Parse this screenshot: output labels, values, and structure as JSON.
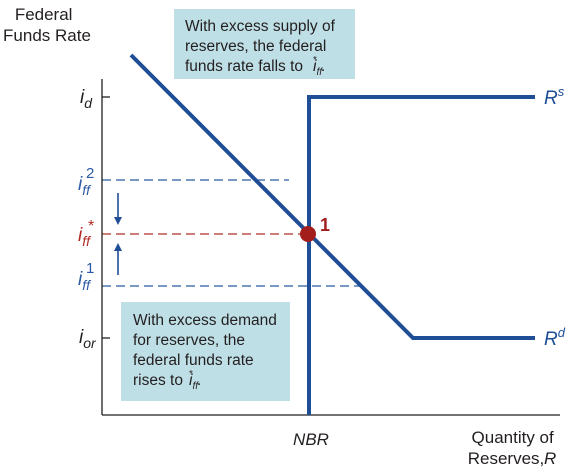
{
  "colors": {
    "curve": "#1f4e96",
    "axis": "#231f20",
    "callout_bg": "#bfdfe6",
    "dashed_blue": "#2a5aa0",
    "dashed_red": "#b03028",
    "equilibrium_point": "#a31d1d",
    "label_blue": "#2b5aa6",
    "label_red": "#b22a22"
  },
  "axes": {
    "y_label_line1": "Federal",
    "y_label_line2": "Funds Rate",
    "x_label_line1": "Quantity of",
    "x_label_line2": "Reserves,",
    "x_label_var": "R",
    "x_tick_nbr": "NBR"
  },
  "y_labels": {
    "i_d": {
      "base": "i",
      "sub": "d"
    },
    "i_ff2": {
      "base": "i",
      "sub": "ff",
      "sup": "2"
    },
    "i_ff_star": {
      "base": "i",
      "sub": "ff",
      "sup": "*"
    },
    "i_ff1": {
      "base": "i",
      "sub": "ff",
      "sup": "1"
    },
    "i_or": {
      "base": "i",
      "sub": "or"
    }
  },
  "curves": {
    "supply": {
      "base": "R",
      "sup": "s"
    },
    "demand": {
      "base": "R",
      "sup": "d"
    }
  },
  "point_label": "1",
  "callouts": {
    "top": {
      "line1": "With excess supply of",
      "line2": "reserves, the federal",
      "line3_prefix": "funds rate falls to ",
      "rate": {
        "base": "i",
        "sub": "ff",
        "sup": "*"
      },
      "suffix": "."
    },
    "bottom": {
      "line1": "With excess demand",
      "line2": "for reserves, the",
      "line3": "federal funds rate",
      "line4_prefix": "rises to ",
      "rate": {
        "base": "i",
        "sub": "ff",
        "sup": "*"
      },
      "suffix": "."
    }
  }
}
